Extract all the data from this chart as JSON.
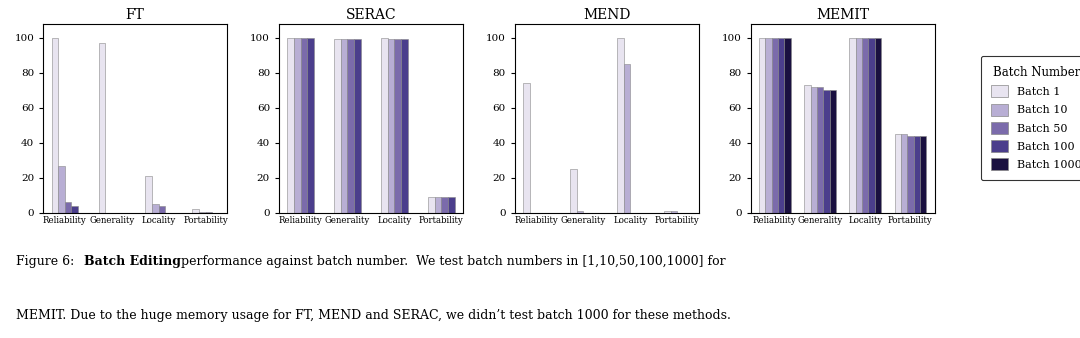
{
  "methods": [
    "FT",
    "SERAC",
    "MEND",
    "MEMIT"
  ],
  "categories": [
    "Reliability",
    "Generality",
    "Locality",
    "Portability"
  ],
  "batch_labels": [
    "Batch 1",
    "Batch 10",
    "Batch 50",
    "Batch 100",
    "Batch 1000"
  ],
  "colors": [
    "#e8e4f0",
    "#b8aed4",
    "#7b6bab",
    "#4b3e8c",
    "#1a1040"
  ],
  "data": {
    "FT": {
      "Reliability": [
        100,
        27,
        6,
        4,
        null
      ],
      "Generality": [
        97,
        null,
        null,
        null,
        null
      ],
      "Locality": [
        21,
        5,
        4,
        null,
        null
      ],
      "Portability": [
        2,
        0.5,
        0.5,
        null,
        null
      ]
    },
    "SERAC": {
      "Reliability": [
        100,
        100,
        100,
        100,
        null
      ],
      "Generality": [
        99,
        99,
        99,
        99,
        null
      ],
      "Locality": [
        100,
        99,
        99,
        99,
        null
      ],
      "Portability": [
        9,
        9,
        9,
        9,
        null
      ]
    },
    "MEND": {
      "Reliability": [
        74,
        null,
        null,
        null,
        null
      ],
      "Generality": [
        25,
        1,
        null,
        null,
        null
      ],
      "Locality": [
        100,
        85,
        null,
        null,
        null
      ],
      "Portability": [
        1,
        1,
        null,
        null,
        null
      ]
    },
    "MEMIT": {
      "Reliability": [
        100,
        100,
        100,
        100,
        100
      ],
      "Generality": [
        73,
        72,
        72,
        70,
        70
      ],
      "Locality": [
        100,
        100,
        100,
        100,
        100
      ],
      "Portability": [
        45,
        45,
        44,
        44,
        44
      ]
    }
  },
  "figsize": [
    10.8,
    3.38
  ],
  "dpi": 100
}
